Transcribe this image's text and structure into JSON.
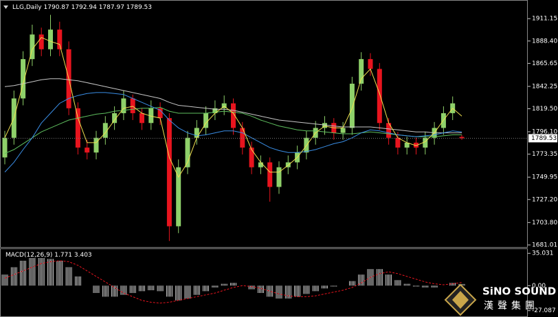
{
  "chart_data": [
    {
      "type": "candlestick",
      "title": "LLG,Daily",
      "up_color": "#8fd16a",
      "down_color": "#e8141e",
      "open": [
        1770,
        1790,
        1830,
        1870,
        1895,
        1880,
        1900,
        1880,
        1820,
        1780,
        1775,
        1790,
        1805,
        1815,
        1830,
        1815,
        1805,
        1820,
        1810,
        1700,
        1760,
        1790,
        1800,
        1815,
        1820,
        1825,
        1800,
        1780,
        1760,
        1765,
        1740,
        1760,
        1765,
        1775,
        1790,
        1800,
        1805,
        1795,
        1800,
        1845,
        1870,
        1860,
        1805,
        1790,
        1780,
        1785,
        1780,
        1790,
        1800,
        1815,
        1790.87
      ],
      "high": [
        1797,
        1838,
        1878,
        1905,
        1902,
        1915,
        1908,
        1888,
        1826,
        1788,
        1797,
        1812,
        1822,
        1838,
        1834,
        1820,
        1828,
        1826,
        1815,
        1768,
        1797,
        1808,
        1822,
        1828,
        1833,
        1830,
        1806,
        1786,
        1772,
        1770,
        1766,
        1772,
        1782,
        1797,
        1807,
        1812,
        1810,
        1806,
        1852,
        1877,
        1876,
        1866,
        1810,
        1796,
        1791,
        1790,
        1796,
        1806,
        1822,
        1832,
        1792.94
      ],
      "low": [
        1763,
        1783,
        1823,
        1863,
        1873,
        1873,
        1873,
        1813,
        1773,
        1768,
        1768,
        1783,
        1798,
        1808,
        1808,
        1798,
        1798,
        1803,
        1685,
        1693,
        1753,
        1783,
        1793,
        1808,
        1813,
        1793,
        1773,
        1753,
        1753,
        1725,
        1733,
        1753,
        1758,
        1768,
        1783,
        1793,
        1788,
        1788,
        1793,
        1838,
        1853,
        1798,
        1783,
        1773,
        1773,
        1773,
        1773,
        1783,
        1793,
        1808,
        1787.97
      ],
      "close": [
        1790,
        1830,
        1870,
        1895,
        1880,
        1900,
        1880,
        1820,
        1780,
        1775,
        1790,
        1805,
        1815,
        1830,
        1815,
        1805,
        1820,
        1810,
        1700,
        1760,
        1790,
        1800,
        1815,
        1820,
        1825,
        1800,
        1780,
        1760,
        1765,
        1740,
        1760,
        1765,
        1775,
        1790,
        1800,
        1805,
        1795,
        1800,
        1845,
        1870,
        1860,
        1805,
        1790,
        1780,
        1785,
        1780,
        1790,
        1800,
        1815,
        1825,
        1789.53
      ],
      "series": [
        {
          "color": "#c8c8c8",
          "values": [
            1842,
            1843,
            1845,
            1847,
            1849,
            1850,
            1850,
            1849,
            1848,
            1846,
            1844,
            1842,
            1840,
            1838,
            1836,
            1834,
            1832,
            1830,
            1826,
            1823,
            1822,
            1821,
            1820,
            1819,
            1819,
            1818,
            1816,
            1814,
            1812,
            1810,
            1808,
            1807,
            1806,
            1805,
            1804,
            1803,
            1802,
            1801,
            1801,
            1801,
            1801,
            1800,
            1799,
            1798,
            1797,
            1796,
            1796,
            1795,
            1795,
            1795,
            1795
          ]
        },
        {
          "color": "#5fc05f",
          "values": [
            1774,
            1778,
            1784,
            1790,
            1796,
            1800,
            1804,
            1808,
            1810,
            1812,
            1814,
            1815,
            1817,
            1818,
            1819,
            1820,
            1820,
            1821,
            1817,
            1815,
            1815,
            1815,
            1815,
            1816,
            1817,
            1816,
            1815,
            1812,
            1808,
            1805,
            1802,
            1800,
            1798,
            1797,
            1797,
            1796,
            1795,
            1794,
            1794,
            1795,
            1796,
            1795,
            1794,
            1793,
            1792,
            1791,
            1791,
            1791,
            1792,
            1793,
            1793
          ]
        },
        {
          "color": "#3a8ee6",
          "values": [
            1755,
            1765,
            1778,
            1790,
            1805,
            1815,
            1825,
            1830,
            1833,
            1835,
            1836,
            1836,
            1835,
            1834,
            1830,
            1826,
            1822,
            1818,
            1808,
            1800,
            1795,
            1792,
            1793,
            1795,
            1797,
            1797,
            1795,
            1790,
            1785,
            1780,
            1777,
            1775,
            1775,
            1776,
            1778,
            1781,
            1784,
            1786,
            1790,
            1795,
            1798,
            1797,
            1795,
            1793,
            1792,
            1791,
            1792,
            1793,
            1795,
            1797,
            1796
          ]
        },
        {
          "color": "#f0e050",
          "values": [
            1790,
            1810,
            1845,
            1880,
            1892,
            1888,
            1885,
            1850,
            1810,
            1785,
            1785,
            1795,
            1808,
            1820,
            1822,
            1815,
            1812,
            1810,
            1770,
            1750,
            1765,
            1790,
            1805,
            1815,
            1822,
            1815,
            1800,
            1778,
            1765,
            1755,
            1755,
            1762,
            1770,
            1782,
            1795,
            1802,
            1800,
            1800,
            1820,
            1850,
            1860,
            1835,
            1805,
            1790,
            1785,
            1782,
            1786,
            1795,
            1808,
            1820,
            1812
          ]
        }
      ],
      "ylim": [
        1678.9,
        1930.1
      ],
      "yticks": [
        1911.15,
        {
          "value": 1888.4,
          "label": "1888.40"
        },
        1865.65,
        1842.25,
        {
          "value": 1819.5,
          "label": "1819.50"
        },
        {
          "value": 1796.1,
          "label": "1796.10"
        },
        1773.35,
        1749.95,
        {
          "value": 1727.2,
          "label": "1727.20"
        },
        {
          "value": 1703.8,
          "label": "1703.80"
        },
        1681.01
      ]
    },
    {
      "type": "macd",
      "title": "MACD(12,26,9)",
      "series": [
        {
          "color": "#ffffff",
          "style": "bars",
          "values": [
            12,
            20,
            27,
            30,
            30,
            29,
            27,
            20,
            10,
            0,
            -8,
            -12,
            -12,
            -10,
            -8,
            -6,
            -5,
            -6,
            -12,
            -16,
            -14,
            -10,
            -6,
            -2,
            2,
            3,
            0,
            -4,
            -8,
            -12,
            -14,
            -14,
            -12,
            -9,
            -6,
            -3,
            -1,
            0,
            5,
            12,
            18,
            18,
            12,
            6,
            2,
            -1,
            -2,
            -2,
            0,
            3,
            1.771
          ]
        },
        {
          "color": "#e8141e",
          "style": "dashed",
          "values": [
            8,
            12,
            16,
            20,
            24,
            26,
            27,
            26,
            22,
            16,
            10,
            4,
            -2,
            -8,
            -12,
            -16,
            -18,
            -19,
            -18,
            -16,
            -14,
            -12,
            -10,
            -8,
            -5,
            -2,
            0,
            -1,
            -3,
            -6,
            -9,
            -11,
            -12,
            -12,
            -11,
            -9,
            -7,
            -5,
            -2,
            3,
            9,
            13,
            15,
            13,
            10,
            7,
            4,
            2,
            1,
            2,
            3.403
          ]
        }
      ],
      "ylim": [
        -34.0,
        40.4
      ],
      "yticks": [
        35.031,
        {
          "value": 0,
          "label": "0.00"
        },
        -27.087
      ]
    }
  ],
  "logo": {
    "name": "SiNO SOUND",
    "subtitle": "漢聲集團"
  }
}
